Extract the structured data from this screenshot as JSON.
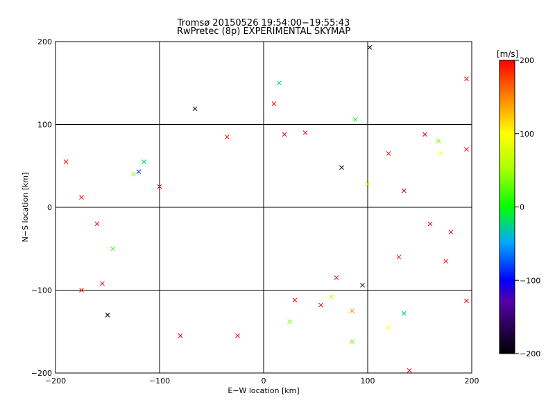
{
  "chart_data": {
    "type": "scatter",
    "title": "Tromsø 20150526 19:54:00−19:55:43",
    "subtitle": "RwPretec (8p) EXPERIMENTAL SKYMAP",
    "xlabel": "E−W location [km]",
    "ylabel": "N−S location [km]",
    "xlim": [
      -200,
      200
    ],
    "ylim": [
      -200,
      200
    ],
    "xticks": [
      "−200",
      "−100",
      "0",
      "100",
      "200"
    ],
    "yticks": [
      "−200",
      "−100",
      "0",
      "100",
      "200"
    ],
    "grid": true,
    "colorbar": {
      "label": "[m/s]",
      "range": [
        -200,
        200
      ],
      "ticks": [
        "−200",
        "−100",
        "0",
        "100",
        "200"
      ],
      "tick_values": [
        -200,
        -100,
        0,
        100,
        200
      ]
    },
    "marker_styles": [
      "dot",
      "cross"
    ],
    "points": [
      {
        "x": 102,
        "y": 193,
        "v": -200,
        "m": "cross"
      },
      {
        "x": -66,
        "y": 119,
        "v": -200,
        "m": "cross"
      },
      {
        "x": 15,
        "y": 150,
        "v": -30,
        "m": "cross"
      },
      {
        "x": 88,
        "y": 106,
        "v": -10,
        "m": "cross"
      },
      {
        "x": 195,
        "y": 155,
        "v": 200,
        "m": "cross"
      },
      {
        "x": 10,
        "y": 125,
        "v": 200,
        "m": "cross"
      },
      {
        "x": 155,
        "y": 88,
        "v": 200,
        "m": "cross"
      },
      {
        "x": 168,
        "y": 80,
        "v": 40,
        "m": "cross"
      },
      {
        "x": 170,
        "y": 65,
        "v": 100,
        "m": "cross"
      },
      {
        "x": -190,
        "y": 55,
        "v": 200,
        "m": "cross"
      },
      {
        "x": -120,
        "y": 43,
        "v": -80,
        "m": "cross"
      },
      {
        "x": -115,
        "y": 55,
        "v": -20,
        "m": "cross"
      },
      {
        "x": 75,
        "y": 48,
        "v": -200,
        "m": "cross"
      },
      {
        "x": 100,
        "y": 28,
        "v": 80,
        "m": "cross"
      },
      {
        "x": -175,
        "y": 12,
        "v": 200,
        "m": "cross"
      },
      {
        "x": -160,
        "y": -20,
        "v": 200,
        "m": "cross"
      },
      {
        "x": -145,
        "y": -50,
        "v": 20,
        "m": "cross"
      },
      {
        "x": -175,
        "y": -100,
        "v": 200,
        "m": "cross"
      },
      {
        "x": -155,
        "y": -92,
        "v": 200,
        "m": "cross"
      },
      {
        "x": -150,
        "y": -130,
        "v": -200,
        "m": "cross"
      },
      {
        "x": 130,
        "y": -60,
        "v": 200,
        "m": "cross"
      },
      {
        "x": 95,
        "y": -94,
        "v": -200,
        "m": "cross"
      },
      {
        "x": 70,
        "y": -85,
        "v": 200,
        "m": "cross"
      },
      {
        "x": 65,
        "y": -108,
        "v": 60,
        "m": "cross"
      },
      {
        "x": 55,
        "y": -118,
        "v": 200,
        "m": "cross"
      },
      {
        "x": 85,
        "y": -125,
        "v": 140,
        "m": "cross"
      },
      {
        "x": 120,
        "y": -145,
        "v": 100,
        "m": "cross"
      },
      {
        "x": 135,
        "y": -128,
        "v": -30,
        "m": "cross"
      },
      {
        "x": 85,
        "y": -162,
        "v": 30,
        "m": "cross"
      },
      {
        "x": 140,
        "y": -197,
        "v": 200,
        "m": "cross"
      },
      {
        "x": 195,
        "y": -113,
        "v": 200,
        "m": "cross"
      },
      {
        "x": -25,
        "y": -155,
        "v": 200,
        "m": "cross"
      },
      {
        "x": -80,
        "y": -155,
        "v": 200,
        "m": "cross"
      },
      {
        "x": 25,
        "y": -138,
        "v": 40,
        "m": "cross"
      },
      {
        "x": 30,
        "y": -112,
        "v": 200,
        "m": "cross"
      },
      {
        "x": 195,
        "y": 70,
        "v": 200,
        "m": "cross"
      },
      {
        "x": 120,
        "y": 65,
        "v": 200,
        "m": "cross"
      },
      {
        "x": 135,
        "y": 20,
        "v": 200,
        "m": "cross"
      },
      {
        "x": 160,
        "y": -20,
        "v": 200,
        "m": "cross"
      },
      {
        "x": 180,
        "y": -30,
        "v": 200,
        "m": "cross"
      },
      {
        "x": 175,
        "y": -65,
        "v": 200,
        "m": "cross"
      },
      {
        "x": -100,
        "y": 25,
        "v": 200,
        "m": "cross"
      },
      {
        "x": -125,
        "y": 40,
        "v": 40,
        "m": "cross"
      },
      {
        "x": -35,
        "y": 85,
        "v": 200,
        "m": "cross"
      },
      {
        "x": 20,
        "y": 88,
        "v": 200,
        "m": "cross"
      },
      {
        "x": 40,
        "y": 90,
        "v": 200,
        "m": "cross"
      }
    ]
  }
}
